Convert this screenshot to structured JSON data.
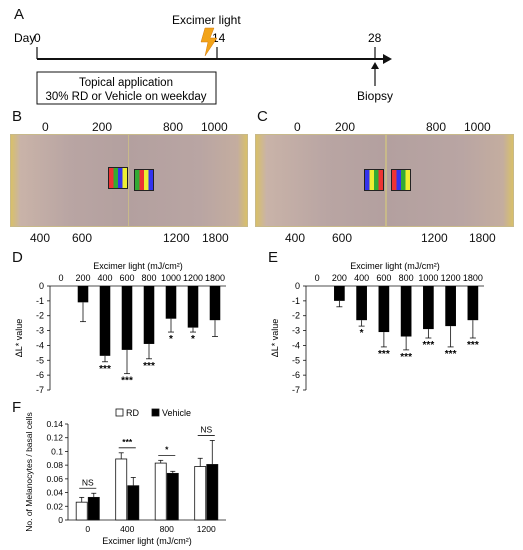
{
  "panels": {
    "a": "A",
    "b": "B",
    "c": "C",
    "d": "D",
    "e": "E",
    "f": "F"
  },
  "timeline": {
    "day_label": "Day",
    "day_start": "0",
    "day_mid": "14",
    "day_end": "28",
    "excimer_label": "Excimer light",
    "box_line1": "Topical application",
    "box_line2": "30% RD or Vehicle on weekday",
    "biopsy_label": "Biopsy",
    "colors": {
      "lightning": "#f2a318",
      "line": "#111111"
    }
  },
  "photos": {
    "b": {
      "top_left": [
        "0",
        "200"
      ],
      "top_right": [
        "800",
        "1000"
      ],
      "bottom_left": [
        "400",
        "600"
      ],
      "bottom_right": [
        "1200",
        "1800"
      ]
    },
    "c": {
      "top_left": [
        "0",
        "200"
      ],
      "top_right": [
        "800",
        "1000"
      ],
      "bottom_left": [
        "400",
        "600"
      ],
      "bottom_right": [
        "1200",
        "1800"
      ]
    },
    "colors": {
      "skin": "#b9a5a3",
      "fur": "#d8c06a"
    }
  },
  "chart_data": [
    {
      "type": "bar",
      "panel": "D",
      "title": "Excimer light (mJ/cm²)",
      "ylabel": "ΔL* value",
      "categories": [
        "0",
        "200",
        "400",
        "600",
        "800",
        "1000",
        "1200",
        "1800"
      ],
      "values": [
        0,
        -1.1,
        -4.7,
        -4.3,
        -3.9,
        -2.2,
        -2.8,
        -2.3
      ],
      "errors": [
        0,
        1.3,
        0.4,
        1.6,
        1.0,
        0.9,
        0.3,
        1.1
      ],
      "significance": [
        "",
        "",
        "***",
        "***",
        "***",
        "*",
        "*",
        ""
      ],
      "ylim": [
        -7,
        0
      ],
      "yticks": [
        "0",
        "-1",
        "-2",
        "-3",
        "-4",
        "-5",
        "-6",
        "-7"
      ],
      "color": "#000000"
    },
    {
      "type": "bar",
      "panel": "E",
      "title": "Excimer light (mJ/cm²)",
      "ylabel": "ΔL* value",
      "categories": [
        "0",
        "200",
        "400",
        "600",
        "800",
        "1000",
        "1200",
        "1800"
      ],
      "values": [
        0,
        -1.0,
        -2.3,
        -3.1,
        -3.4,
        -2.9,
        -2.7,
        -2.3
      ],
      "errors": [
        0,
        0.4,
        0.4,
        1.0,
        0.9,
        0.6,
        1.4,
        1.2
      ],
      "significance": [
        "",
        "",
        "*",
        "***",
        "***",
        "***",
        "***",
        "***"
      ],
      "ylim": [
        -7,
        0
      ],
      "yticks": [
        "0",
        "-1",
        "-2",
        "-3",
        "-4",
        "-5",
        "-6",
        "-7"
      ],
      "color": "#000000"
    },
    {
      "type": "bar",
      "panel": "F",
      "xlabel": "Excimer light (mJ/cm²)",
      "ylabel": "No. of Melanocytes / basal cells",
      "categories": [
        "0",
        "400",
        "800",
        "1200"
      ],
      "series": [
        {
          "name": "RD",
          "values": [
            0.026,
            0.089,
            0.083,
            0.078
          ],
          "errors": [
            0.007,
            0.009,
            0.004,
            0.012
          ],
          "fill": "#ffffff"
        },
        {
          "name": "Vehicle",
          "values": [
            0.033,
            0.05,
            0.068,
            0.081
          ],
          "errors": [
            0.006,
            0.012,
            0.003,
            0.035
          ],
          "fill": "#000000"
        }
      ],
      "significance": [
        "NS",
        "***",
        "*",
        "NS"
      ],
      "ylim": [
        0,
        0.14
      ],
      "yticks": [
        "0",
        "0.02",
        "0.04",
        "0.06",
        "0.08",
        "0.1",
        "0.12",
        "0.14"
      ],
      "legend": "top"
    }
  ]
}
